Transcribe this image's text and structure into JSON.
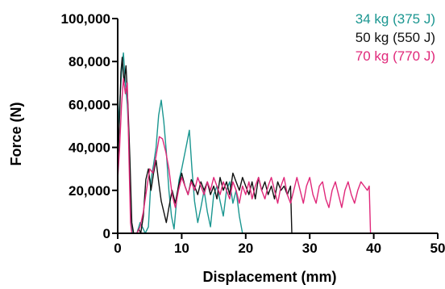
{
  "chart_data": {
    "type": "line",
    "xlabel": "Displacement (mm)",
    "ylabel": "Force (N)",
    "xlim": [
      0,
      50
    ],
    "ylim": [
      0,
      100000
    ],
    "x_ticks": [
      0,
      10,
      20,
      30,
      40,
      50
    ],
    "y_ticks": [
      0,
      20000,
      40000,
      60000,
      80000,
      100000
    ],
    "x_tick_labels": [
      "0",
      "10",
      "20",
      "30",
      "40",
      "50"
    ],
    "y_tick_labels": [
      "0",
      "20,000",
      "40,000",
      "60,000",
      "80,000",
      "100,000"
    ],
    "grid": false,
    "legend_position": "top-right",
    "series": [
      {
        "name": "34 kg (375 J)",
        "color": "#1a9690",
        "points": [
          [
            0,
            48000
          ],
          [
            0.3,
            60000
          ],
          [
            0.6,
            75000
          ],
          [
            0.9,
            84000
          ],
          [
            1.2,
            70000
          ],
          [
            1.5,
            60000
          ],
          [
            1.8,
            40000
          ],
          [
            2.0,
            10000
          ],
          [
            2.3,
            0
          ],
          [
            3.0,
            0
          ],
          [
            3.5,
            5000
          ],
          [
            4.0,
            2000
          ],
          [
            4.3,
            0
          ],
          [
            4.8,
            3000
          ],
          [
            5.2,
            25000
          ],
          [
            5.6,
            32000
          ],
          [
            6.0,
            40000
          ],
          [
            6.4,
            55000
          ],
          [
            6.8,
            62000
          ],
          [
            7.2,
            52000
          ],
          [
            7.6,
            38000
          ],
          [
            8.0,
            20000
          ],
          [
            8.4,
            8000
          ],
          [
            8.8,
            2000
          ],
          [
            9.2,
            15000
          ],
          [
            9.6,
            25000
          ],
          [
            10.0,
            30000
          ],
          [
            10.4,
            36000
          ],
          [
            10.8,
            42000
          ],
          [
            11.2,
            48000
          ],
          [
            11.6,
            30000
          ],
          [
            12.0,
            15000
          ],
          [
            12.5,
            5000
          ],
          [
            13.0,
            12000
          ],
          [
            13.5,
            20000
          ],
          [
            14.0,
            10000
          ],
          [
            14.5,
            3000
          ],
          [
            15.0,
            18000
          ],
          [
            15.5,
            22000
          ],
          [
            16.0,
            15000
          ],
          [
            16.5,
            8000
          ],
          [
            17.0,
            20000
          ],
          [
            17.5,
            24000
          ],
          [
            18.0,
            14000
          ],
          [
            18.5,
            20000
          ],
          [
            19.0,
            8000
          ],
          [
            19.5,
            0
          ]
        ]
      },
      {
        "name": "50 kg (550 J)",
        "color": "#111111",
        "points": [
          [
            0,
            30000
          ],
          [
            0.3,
            55000
          ],
          [
            0.5,
            75000
          ],
          [
            0.7,
            82000
          ],
          [
            1.0,
            70000
          ],
          [
            1.3,
            78000
          ],
          [
            1.6,
            60000
          ],
          [
            1.9,
            35000
          ],
          [
            2.2,
            5000
          ],
          [
            2.5,
            0
          ],
          [
            3.0,
            0
          ],
          [
            3.3,
            2000
          ],
          [
            3.6,
            0
          ],
          [
            4.0,
            8000
          ],
          [
            4.4,
            25000
          ],
          [
            4.8,
            30000
          ],
          [
            5.2,
            20000
          ],
          [
            5.6,
            28000
          ],
          [
            6.0,
            34000
          ],
          [
            6.4,
            24000
          ],
          [
            6.8,
            15000
          ],
          [
            7.2,
            10000
          ],
          [
            7.6,
            5000
          ],
          [
            8.0,
            12000
          ],
          [
            8.5,
            20000
          ],
          [
            9.0,
            14000
          ],
          [
            9.5,
            22000
          ],
          [
            10.0,
            28000
          ],
          [
            10.5,
            22000
          ],
          [
            11.0,
            18000
          ],
          [
            11.5,
            25000
          ],
          [
            12.0,
            22000
          ],
          [
            12.5,
            18000
          ],
          [
            13.0,
            24000
          ],
          [
            13.5,
            20000
          ],
          [
            14.0,
            24000
          ],
          [
            14.5,
            18000
          ],
          [
            15.0,
            22000
          ],
          [
            15.5,
            16000
          ],
          [
            16.0,
            26000
          ],
          [
            16.5,
            20000
          ],
          [
            17.0,
            24000
          ],
          [
            17.5,
            18000
          ],
          [
            18.0,
            28000
          ],
          [
            18.5,
            24000
          ],
          [
            19.0,
            20000
          ],
          [
            19.5,
            26000
          ],
          [
            20.0,
            22000
          ],
          [
            20.5,
            18000
          ],
          [
            21.0,
            24000
          ],
          [
            21.5,
            16000
          ],
          [
            22.0,
            26000
          ],
          [
            22.5,
            20000
          ],
          [
            23.0,
            24000
          ],
          [
            23.5,
            18000
          ],
          [
            24.0,
            22000
          ],
          [
            24.5,
            16000
          ],
          [
            25.0,
            24000
          ],
          [
            25.5,
            20000
          ],
          [
            26.0,
            22000
          ],
          [
            26.5,
            18000
          ],
          [
            27.0,
            22000
          ],
          [
            27.2,
            0
          ]
        ]
      },
      {
        "name": "70 kg (770 J)",
        "color": "#e0287a",
        "points": [
          [
            0,
            25000
          ],
          [
            0.3,
            40000
          ],
          [
            0.6,
            60000
          ],
          [
            0.9,
            72000
          ],
          [
            1.2,
            65000
          ],
          [
            1.5,
            70000
          ],
          [
            1.8,
            30000
          ],
          [
            2.0,
            5000
          ],
          [
            2.2,
            0
          ],
          [
            3.0,
            0
          ],
          [
            3.5,
            3000
          ],
          [
            4.0,
            10000
          ],
          [
            4.5,
            20000
          ],
          [
            5.0,
            30000
          ],
          [
            5.5,
            28000
          ],
          [
            6.0,
            36000
          ],
          [
            6.5,
            45000
          ],
          [
            7.0,
            44000
          ],
          [
            7.5,
            38000
          ],
          [
            8.0,
            30000
          ],
          [
            8.5,
            18000
          ],
          [
            9.0,
            12000
          ],
          [
            9.5,
            20000
          ],
          [
            10.0,
            26000
          ],
          [
            10.5,
            22000
          ],
          [
            11.0,
            18000
          ],
          [
            11.5,
            24000
          ],
          [
            12.0,
            20000
          ],
          [
            12.5,
            26000
          ],
          [
            13.0,
            22000
          ],
          [
            13.5,
            18000
          ],
          [
            14.0,
            24000
          ],
          [
            14.5,
            20000
          ],
          [
            15.0,
            26000
          ],
          [
            15.5,
            22000
          ],
          [
            16.0,
            18000
          ],
          [
            16.5,
            24000
          ],
          [
            17.0,
            20000
          ],
          [
            17.5,
            16000
          ],
          [
            18.0,
            24000
          ],
          [
            18.5,
            20000
          ],
          [
            19.0,
            14000
          ],
          [
            19.5,
            22000
          ],
          [
            20.0,
            18000
          ],
          [
            20.5,
            24000
          ],
          [
            21.0,
            16000
          ],
          [
            21.5,
            22000
          ],
          [
            22.0,
            26000
          ],
          [
            22.5,
            20000
          ],
          [
            23.0,
            16000
          ],
          [
            23.5,
            22000
          ],
          [
            24.0,
            26000
          ],
          [
            24.5,
            20000
          ],
          [
            25.0,
            14000
          ],
          [
            25.5,
            22000
          ],
          [
            26.0,
            26000
          ],
          [
            26.5,
            18000
          ],
          [
            27.0,
            14000
          ],
          [
            27.5,
            20000
          ],
          [
            28.0,
            26000
          ],
          [
            28.5,
            20000
          ],
          [
            29.0,
            14000
          ],
          [
            29.5,
            22000
          ],
          [
            30.0,
            26000
          ],
          [
            30.5,
            18000
          ],
          [
            31.0,
            14000
          ],
          [
            31.5,
            22000
          ],
          [
            32.0,
            24000
          ],
          [
            32.5,
            16000
          ],
          [
            33.0,
            12000
          ],
          [
            33.5,
            20000
          ],
          [
            34.0,
            24000
          ],
          [
            34.5,
            18000
          ],
          [
            35.0,
            12000
          ],
          [
            35.5,
            20000
          ],
          [
            36.0,
            24000
          ],
          [
            36.5,
            18000
          ],
          [
            37.0,
            14000
          ],
          [
            37.5,
            20000
          ],
          [
            38.0,
            24000
          ],
          [
            38.5,
            22000
          ],
          [
            39.0,
            20000
          ],
          [
            39.3,
            22000
          ],
          [
            39.5,
            0
          ]
        ]
      }
    ]
  }
}
